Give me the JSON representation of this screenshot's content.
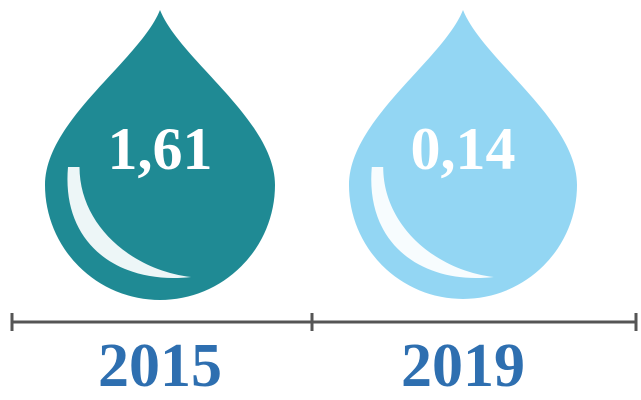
{
  "chart_data": {
    "type": "pictograph",
    "categories": [
      "2015",
      "2019"
    ],
    "values": [
      1.61,
      0.14
    ],
    "value_labels": [
      "1,61",
      "0,14"
    ],
    "colors": [
      "#1f8a94",
      "#93d6f3"
    ]
  }
}
